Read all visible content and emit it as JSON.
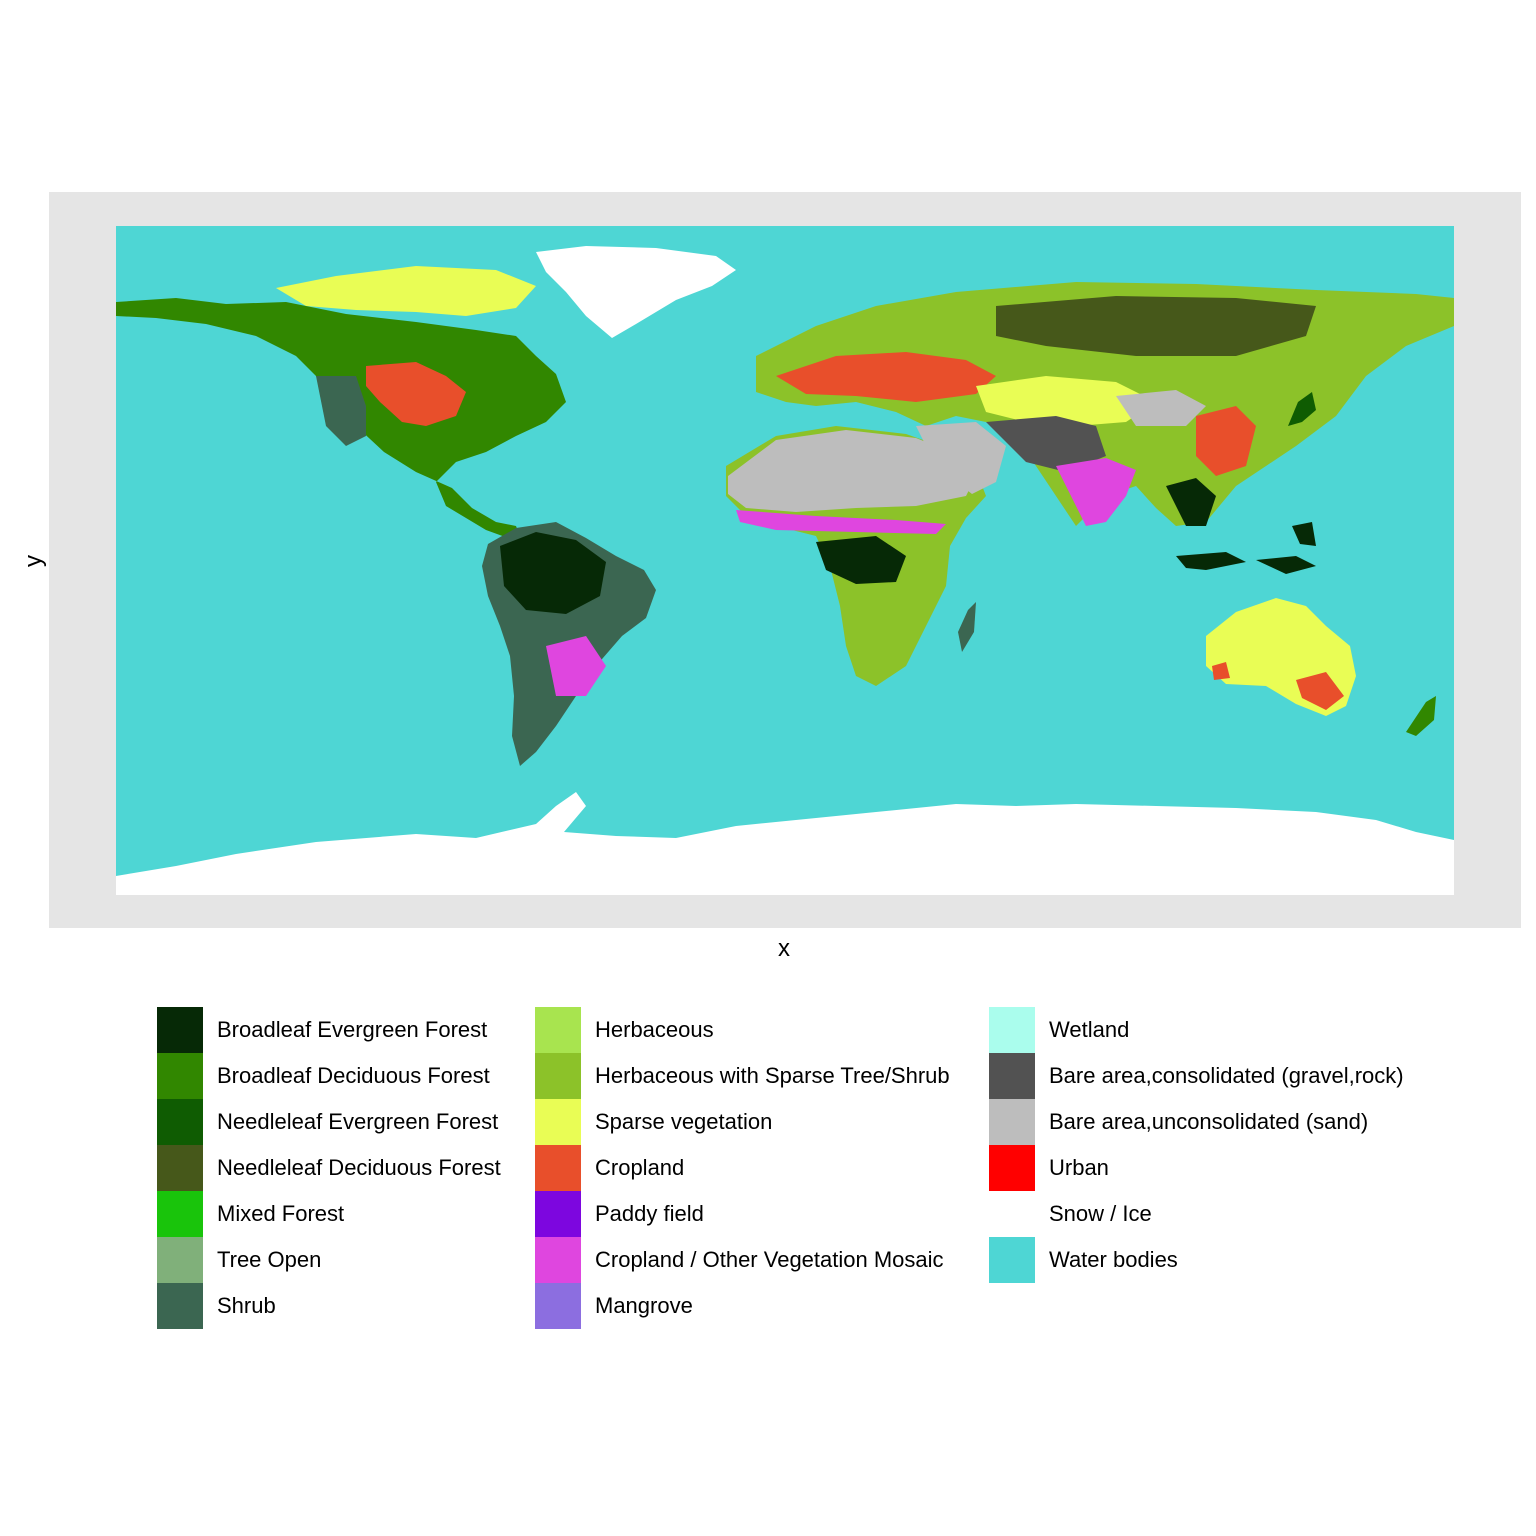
{
  "axes": {
    "xlabel": "x",
    "ylabel": "y"
  },
  "colors": {
    "panel_background": "#e5e5e5",
    "water": "#4ed6d4",
    "snow": "#ffffff"
  },
  "legend": {
    "columns": [
      [
        {
          "label": "Broadleaf Evergreen Forest",
          "color": "#062906"
        },
        {
          "label": "Broadleaf Deciduous Forest",
          "color": "#318700"
        },
        {
          "label": "Needleleaf Evergreen Forest",
          "color": "#0f5c02"
        },
        {
          "label": "Needleleaf Deciduous Forest",
          "color": "#46581a"
        },
        {
          "label": "Mixed Forest",
          "color": "#19c40b"
        },
        {
          "label": "Tree Open",
          "color": "#80b07a"
        },
        {
          "label": "Shrub",
          "color": "#3b6651"
        }
      ],
      [
        {
          "label": "Herbaceous",
          "color": "#a8e44f"
        },
        {
          "label": "Herbaceous with Sparse Tree/Shrub",
          "color": "#8cc229"
        },
        {
          "label": "Sparse vegetation",
          "color": "#e9fd55"
        },
        {
          "label": "Cropland",
          "color": "#e84f2b"
        },
        {
          "label": "Paddy field",
          "color": "#7d06df"
        },
        {
          "label": "Cropland / Other Vegetation Mosaic",
          "color": "#df46df"
        },
        {
          "label": "Mangrove",
          "color": "#8c6ee0"
        }
      ],
      [
        {
          "label": "Wetland",
          "color": "#aafded"
        },
        {
          "label": "Bare area,consolidated (gravel,rock)",
          "color": "#525252"
        },
        {
          "label": "Bare area,unconsolidated (sand)",
          "color": "#bdbdbd"
        },
        {
          "label": "Urban",
          "color": "#ff0000"
        },
        {
          "label": "Snow / Ice",
          "color": "#ffffff"
        },
        {
          "label": "Water bodies",
          "color": "#4ed6d4"
        }
      ]
    ]
  }
}
